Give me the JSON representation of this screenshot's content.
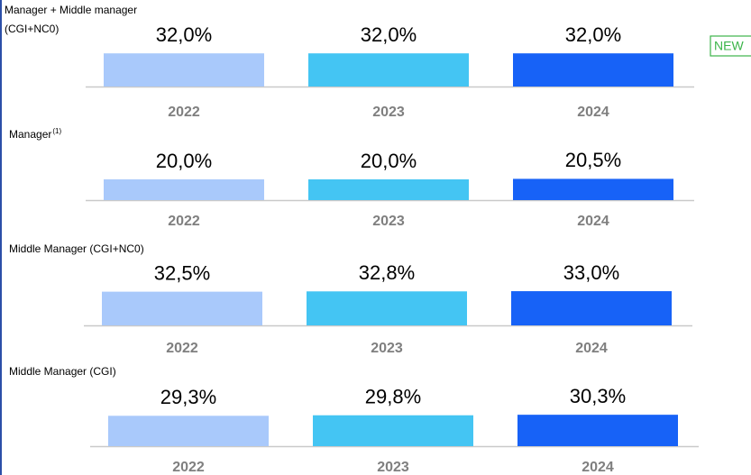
{
  "badge": "NEW",
  "chart_data": [
    {
      "type": "bar",
      "title": [
        "Manager + Middle manager",
        "(CGI+NC0)"
      ],
      "categories": [
        "2022",
        "2023",
        "2024"
      ],
      "values": [
        32.0,
        32.0,
        32.0
      ],
      "value_labels": [
        "32,0%",
        "32,0%",
        "32,0%"
      ],
      "colors": [
        "#a9c9fb",
        "#44c5f3",
        "#1762f7"
      ]
    },
    {
      "type": "bar",
      "title": [
        "Manager"
      ],
      "title_superscript": "(1)",
      "categories": [
        "2022",
        "2023",
        "2024"
      ],
      "values": [
        20.0,
        20.0,
        20.5
      ],
      "value_labels": [
        "20,0%",
        "20,0%",
        "20,5%"
      ],
      "colors": [
        "#a9c9fb",
        "#44c5f3",
        "#1762f7"
      ]
    },
    {
      "type": "bar",
      "title": [
        "Middle Manager (CGI+NC0)"
      ],
      "categories": [
        "2022",
        "2023",
        "2024"
      ],
      "values": [
        32.5,
        32.8,
        33.0
      ],
      "value_labels": [
        "32,5%",
        "32,8%",
        "33,0%"
      ],
      "colors": [
        "#a9c9fb",
        "#44c5f3",
        "#1762f7"
      ]
    },
    {
      "type": "bar",
      "title": [
        "Middle Manager (CGI)"
      ],
      "categories": [
        "2022",
        "2023",
        "2024"
      ],
      "values": [
        29.3,
        29.8,
        30.3
      ],
      "value_labels": [
        "29,3%",
        "29,8%",
        "30,3%"
      ],
      "colors": [
        "#a9c9fb",
        "#44c5f3",
        "#1762f7"
      ]
    }
  ]
}
